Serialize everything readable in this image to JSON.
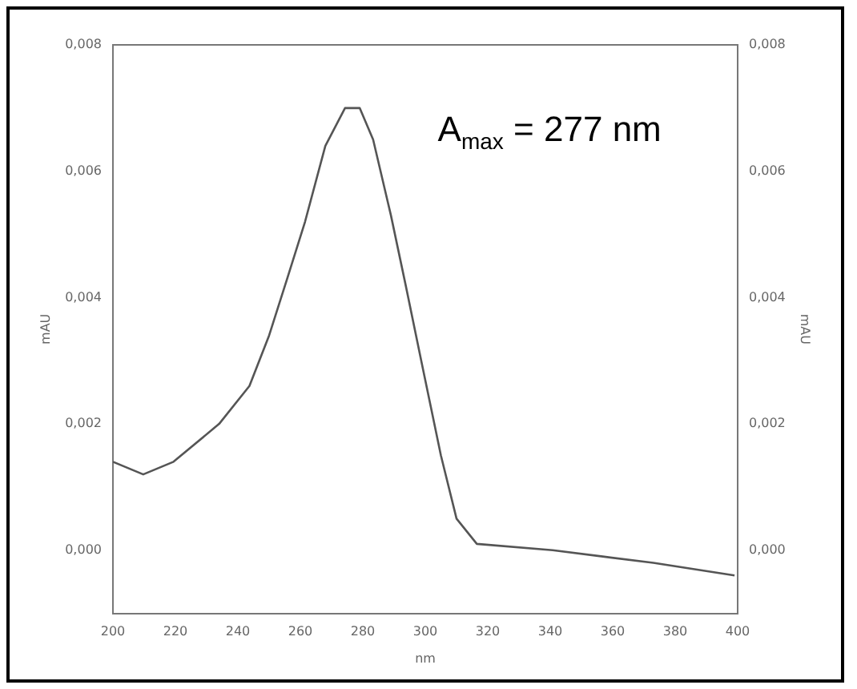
{
  "chart_data": {
    "type": "line",
    "xlabel": "nm",
    "ylabel": "mAU",
    "y2label": "mAU",
    "annotations": [
      "A$_{max}$ = 277 nm"
    ],
    "x": [
      200,
      209.7,
      219.4,
      234,
      243.7,
      250,
      255.8,
      261.5,
      268,
      274.3,
      279,
      283.3,
      289,
      293.7,
      298.7,
      305,
      310,
      316.5,
      340.8,
      356.8,
      373,
      399
    ],
    "series": [
      {
        "color": "#555555",
        "values": [
          0.0014,
          0.0012,
          0.0014,
          0.002,
          0.0026,
          0.0034,
          0.0043,
          0.0052,
          0.0064,
          0.007,
          0.007,
          0.0065,
          0.0053,
          0.0042,
          0.003,
          0.0015,
          0.0005,
          0.0001,
          0,
          -0.0001,
          -0.0002,
          -0.0004
        ]
      }
    ],
    "xlim": [
      200,
      400
    ],
    "xticks": [
      200,
      220,
      240,
      260,
      280,
      300,
      320,
      340,
      360,
      380,
      400
    ],
    "ylim": [
      -0.001,
      0.008
    ],
    "yticks": [
      {
        "value": 0,
        "label": "0,000"
      },
      {
        "value": 0.002,
        "label": "0,002"
      },
      {
        "value": 0.004,
        "label": "0,004"
      },
      {
        "value": 0.006,
        "label": "0,006"
      },
      {
        "value": 0.008,
        "label": "0,008"
      }
    ],
    "y2lim": [
      -0.001,
      0.008
    ],
    "y2ticks": [
      {
        "value": 0,
        "label": "0,000"
      },
      {
        "value": 0.002,
        "label": "0,002"
      },
      {
        "value": 0.004,
        "label": "0,004"
      },
      {
        "value": 0.006,
        "label": "0,006"
      },
      {
        "value": 0.008,
        "label": "0,008"
      }
    ],
    "grid": false,
    "legend": false,
    "marker": "none",
    "line_style": "solid"
  }
}
